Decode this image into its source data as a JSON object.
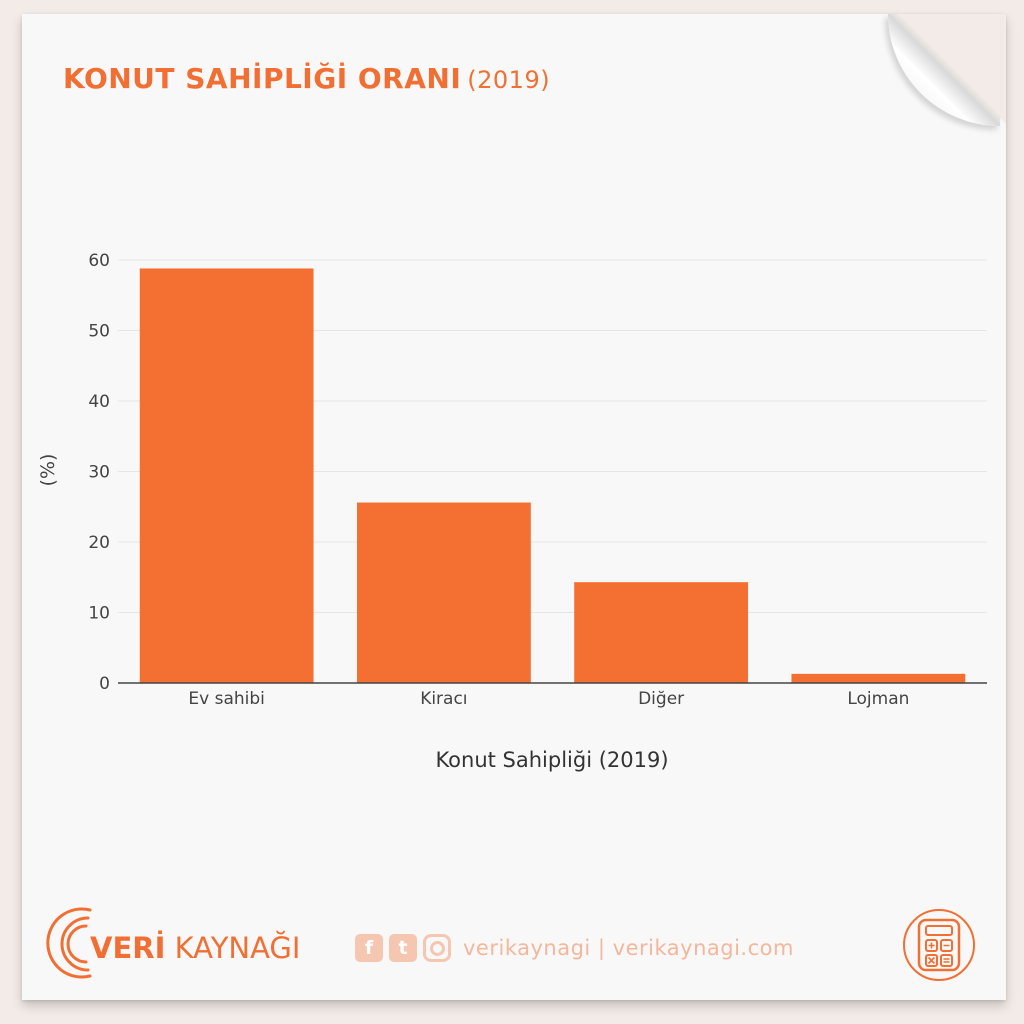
{
  "header": {
    "title": "KONUT SAHİPLİĞİ ORANI",
    "title_year": "(2019)"
  },
  "colors": {
    "accent": "#f26f33",
    "bar": "#f47032",
    "grid": "#e6e6e6",
    "axis_text": "#444444"
  },
  "chart_data": {
    "type": "bar",
    "categories": [
      "Ev sahibi",
      "Kiracı",
      "Diğer",
      "Lojman"
    ],
    "values": [
      58.8,
      25.6,
      14.3,
      1.3
    ],
    "xlabel": "Konut Sahipliği (2019)",
    "ylabel": "(%)",
    "ylim": [
      0,
      60
    ],
    "yticks": [
      0,
      10,
      20,
      30,
      40,
      50,
      60
    ],
    "grid": true
  },
  "footer": {
    "brand_left": "VERİ",
    "brand_right": " KAYNAĞI",
    "social_icons": [
      "facebook-icon",
      "twitter-icon",
      "instagram-icon"
    ],
    "facebook_glyph": "f",
    "twitter_glyph": "t",
    "social_text": "verikaynagi | verikaynagi.com",
    "calculator_icon": "calculator-icon"
  }
}
